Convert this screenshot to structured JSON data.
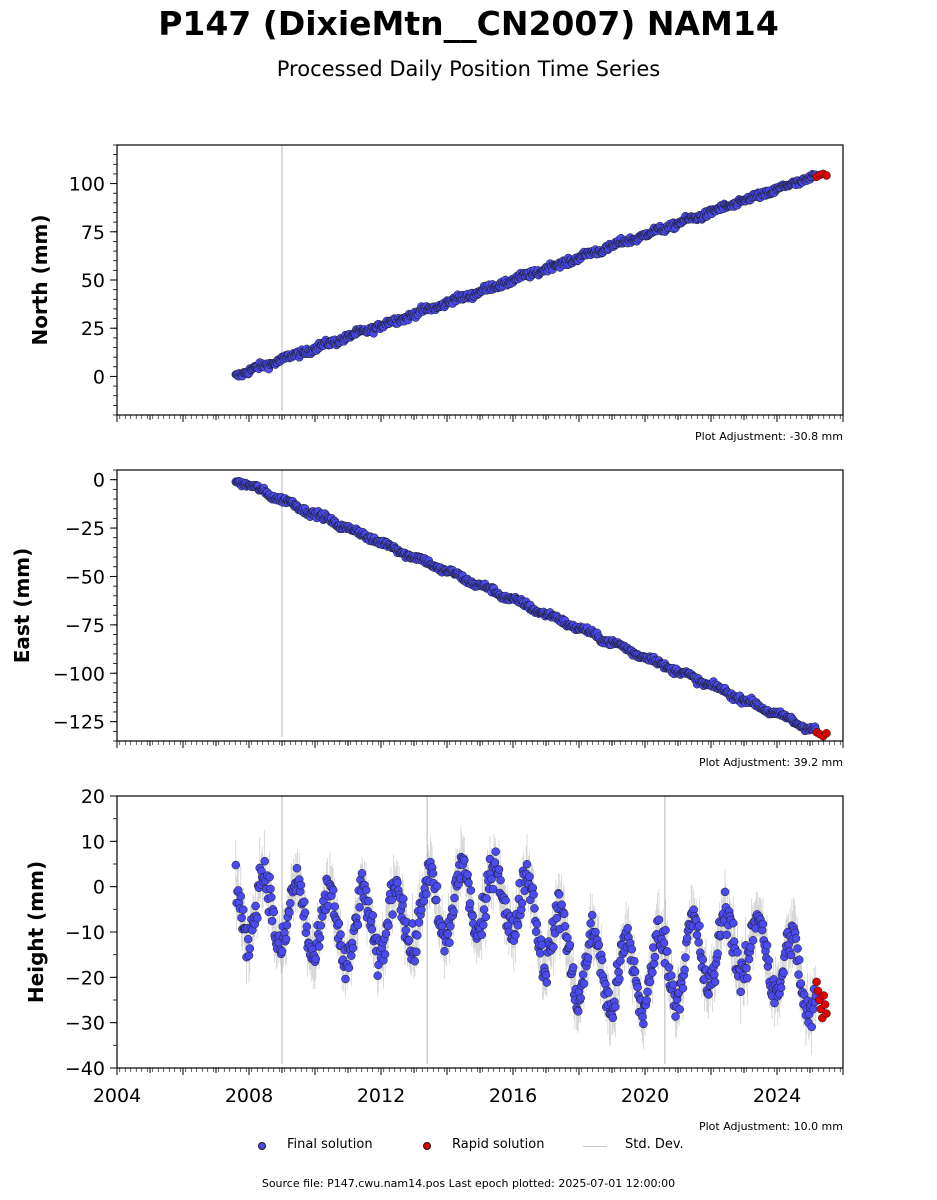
{
  "figure": {
    "title": "P147 (DixieMtn__CN2007) NAM14",
    "subtitle": "Processed Daily Position Time Series",
    "source_text": "Source file: P147.cwu.nam14.pos  Last epoch plotted: 2025-07-01 12:00:00"
  },
  "legend": {
    "final": "Final solution",
    "rapid": "Rapid solution",
    "stddev": "Std. Dev."
  },
  "colors": {
    "final_fill": "#4a4aef",
    "final_edge": "#1a1a1a",
    "rapid_fill": "#e00000",
    "stddev": "#9a9a9a",
    "step_line": "#cfcfcf"
  },
  "chart_data": [
    {
      "type": "scatter",
      "panel": "north",
      "ylabel": "North (mm)",
      "xlim": [
        2004.0,
        2026.0
      ],
      "ylim": [
        -20,
        120
      ],
      "yticks": [
        0,
        25,
        50,
        75,
        100
      ],
      "adjustment": "Plot Adjustment: -30.8 mm",
      "step_lines": [
        2009.0
      ],
      "final_series": {
        "name": "Final solution",
        "start": 2007.6,
        "end": 2025.2,
        "start_value": 0.5,
        "end_value": 104.0,
        "noise_mm": 1.2,
        "seasonal_mm": 0.6
      },
      "rapid_series": {
        "name": "Rapid solution",
        "start": 2025.2,
        "end": 2025.5,
        "values": [
          103.5,
          104.5,
          105.0,
          104.2
        ]
      }
    },
    {
      "type": "scatter",
      "panel": "east",
      "ylabel": "East (mm)",
      "xlim": [
        2004.0,
        2026.0
      ],
      "ylim": [
        -135,
        5
      ],
      "yticks": [
        0,
        -25,
        -50,
        -75,
        -100,
        -125
      ],
      "adjustment": "Plot Adjustment: 39.2 mm",
      "step_lines": [
        2009.0
      ],
      "final_series": {
        "name": "Final solution",
        "start": 2007.6,
        "end": 2025.2,
        "start_value": 0.0,
        "end_value": -130.0,
        "noise_mm": 1.1,
        "seasonal_mm": 0.8
      },
      "rapid_series": {
        "name": "Rapid solution",
        "start": 2025.2,
        "end": 2025.5,
        "values": [
          -130.5,
          -131.5,
          -132.5,
          -131.0
        ]
      }
    },
    {
      "type": "scatter",
      "panel": "height",
      "ylabel": "Height (mm)",
      "xlim": [
        2004.0,
        2026.0
      ],
      "ylim": [
        -40,
        20
      ],
      "yticks": [
        20,
        10,
        0,
        -10,
        -20,
        -30,
        -40
      ],
      "xticks": [
        2004,
        2008,
        2012,
        2016,
        2020,
        2024
      ],
      "adjustment": "Plot Adjustment: 10.0 mm",
      "step_lines": [
        2009.0,
        2013.4,
        2020.6
      ],
      "final_series": {
        "name": "Final solution",
        "seasonal_amplitude_mm": 8,
        "noise_mm": 3.0,
        "trend_knots": [
          [
            2007.6,
            -3
          ],
          [
            2011.0,
            -10
          ],
          [
            2014.5,
            -3
          ],
          [
            2016.0,
            -2
          ],
          [
            2018.0,
            -17
          ],
          [
            2019.5,
            -20
          ],
          [
            2023.0,
            -12
          ],
          [
            2025.2,
            -22
          ]
        ]
      },
      "rapid_series": {
        "name": "Rapid solution",
        "start": 2025.2,
        "end": 2025.5,
        "values": [
          -21,
          -23,
          -25,
          -27,
          -29,
          -24,
          -26,
          -28
        ]
      }
    }
  ]
}
